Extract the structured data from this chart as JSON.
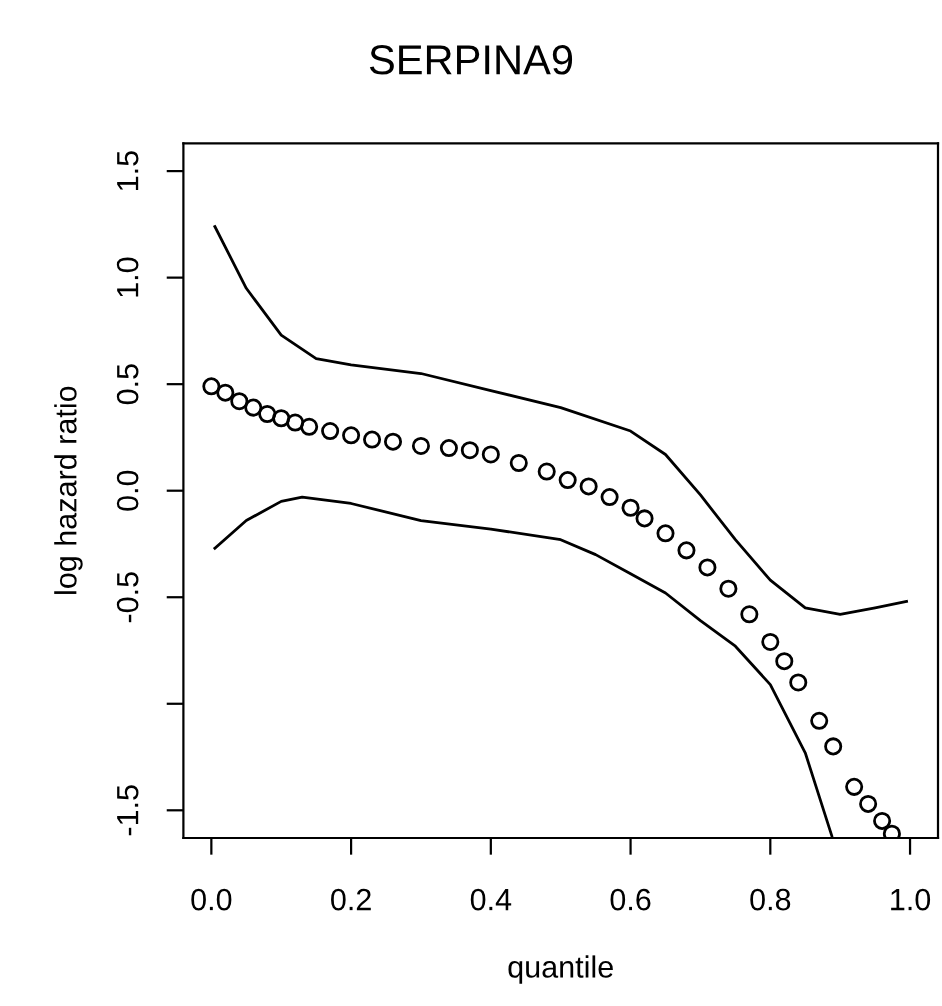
{
  "chart_data": {
    "type": "scatter",
    "title": "SERPINA9",
    "xlabel": "quantile",
    "ylabel": "log hazard ratio",
    "xlim": [
      -0.04,
      1.04
    ],
    "ylim": [
      -1.63,
      1.63
    ],
    "xticks": [
      {
        "value": 0,
        "label": "0.0"
      },
      {
        "value": 0.2,
        "label": "0.2"
      },
      {
        "value": 0.4,
        "label": "0.4"
      },
      {
        "value": 0.6,
        "label": "0.6"
      },
      {
        "value": 0.8,
        "label": "0.8"
      },
      {
        "value": 1,
        "label": "1.0"
      }
    ],
    "yticks": [
      {
        "value": -1.5,
        "label": "-1.5"
      },
      {
        "value": -1,
        "label": null
      },
      {
        "value": -0.5,
        "label": "-0.5"
      },
      {
        "value": 0,
        "label": "0.0"
      },
      {
        "value": 0.5,
        "label": "0.5"
      },
      {
        "value": 1,
        "label": "1.0"
      },
      {
        "value": 1.5,
        "label": "1.5"
      }
    ],
    "grid": false,
    "series": [
      {
        "marker": "circle",
        "color": "#000000",
        "x": [
          0.0,
          0.02,
          0.04,
          0.06,
          0.08,
          0.1,
          0.12,
          0.14,
          0.17,
          0.2,
          0.23,
          0.26,
          0.3,
          0.34,
          0.37,
          0.4,
          0.44,
          0.48,
          0.51,
          0.54,
          0.57,
          0.6,
          0.62,
          0.65,
          0.68,
          0.71,
          0.74,
          0.77,
          0.8,
          0.82,
          0.84,
          0.87,
          0.89,
          0.92,
          0.94,
          0.96,
          0.974
        ],
        "values": [
          0.49,
          0.46,
          0.42,
          0.39,
          0.36,
          0.34,
          0.32,
          0.3,
          0.28,
          0.26,
          0.24,
          0.23,
          0.21,
          0.2,
          0.19,
          0.17,
          0.13,
          0.09,
          0.05,
          0.02,
          -0.03,
          -0.08,
          -0.13,
          -0.2,
          -0.28,
          -0.36,
          -0.46,
          -0.58,
          -0.71,
          -0.8,
          -0.9,
          -1.08,
          -1.2,
          -1.39,
          -1.47,
          -1.55,
          -1.61
        ]
      },
      {
        "type": "line",
        "color": "#000000",
        "x": [
          0.005,
          0.05,
          0.1,
          0.15,
          0.2,
          0.3,
          0.4,
          0.5,
          0.6,
          0.65,
          0.7,
          0.75,
          0.8,
          0.85,
          0.9,
          0.95,
          0.995
        ],
        "values": [
          1.24,
          0.95,
          0.73,
          0.62,
          0.59,
          0.55,
          0.47,
          0.39,
          0.28,
          0.17,
          -0.02,
          -0.23,
          -0.42,
          -0.55,
          -0.58,
          -0.55,
          -0.52
        ]
      },
      {
        "type": "line",
        "color": "#000000",
        "x": [
          0.005,
          0.05,
          0.1,
          0.13,
          0.2,
          0.3,
          0.4,
          0.5,
          0.55,
          0.6,
          0.65,
          0.7,
          0.75,
          0.8,
          0.85,
          0.888
        ],
        "values": [
          -0.27,
          -0.14,
          -0.05,
          -0.03,
          -0.06,
          -0.14,
          -0.18,
          -0.23,
          -0.3,
          -0.39,
          -0.48,
          -0.61,
          -0.73,
          -0.91,
          -1.23,
          -1.62
        ]
      }
    ]
  }
}
